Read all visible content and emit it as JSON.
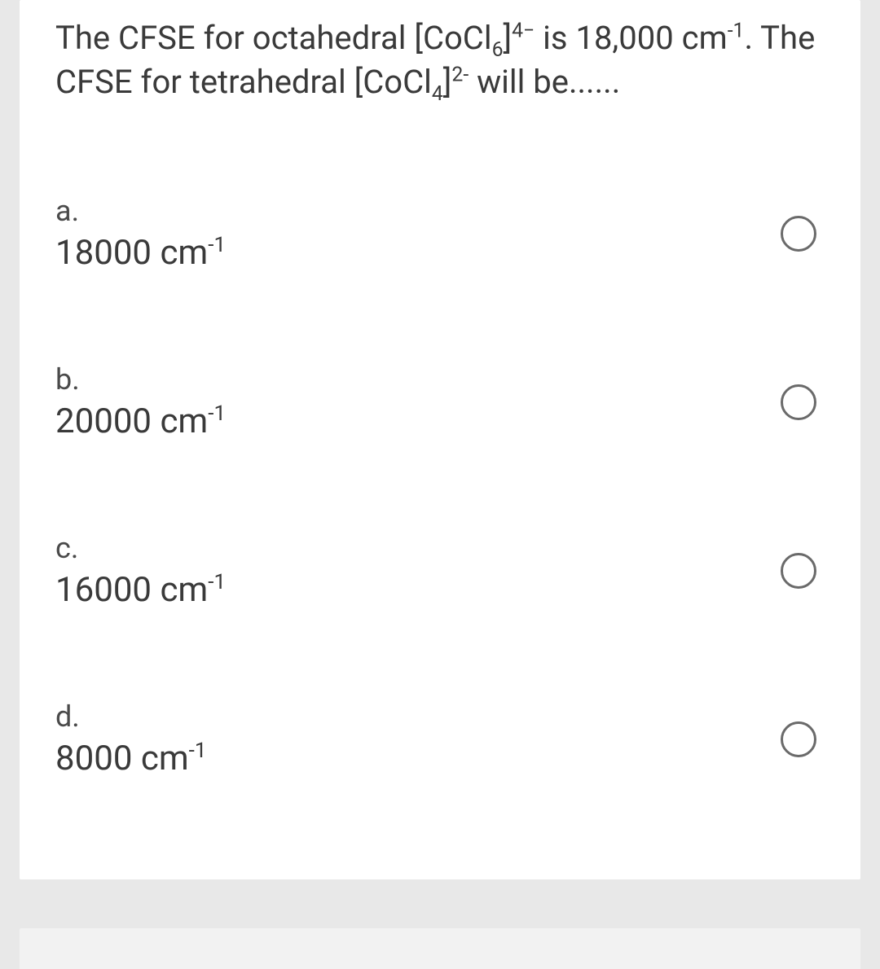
{
  "question": {
    "html": "The CFSE for octahedral [CoCl<sub>6</sub>]<sup>4−</sup> is 18,000 cm<sup>-1</sup>. The CFSE for tetrahedral [CoCl<sub>4</sub>]<sup>2-</sup> will be......"
  },
  "options": [
    {
      "letter": "a.",
      "value_html": "18000 cm<sup>-1</sup>"
    },
    {
      "letter": "b.",
      "value_html": "20000 cm<sup>-1</sup>"
    },
    {
      "letter": "c.",
      "value_html": "16000 cm<sup>-1</sup>"
    },
    {
      "letter": "d.",
      "value_html": "8000 cm<sup>-1</sup>"
    }
  ],
  "colors": {
    "page_bg": "#e8e8e8",
    "card_bg": "#ffffff",
    "text": "#3a3a3a",
    "radio_border": "#6a6a6a"
  }
}
